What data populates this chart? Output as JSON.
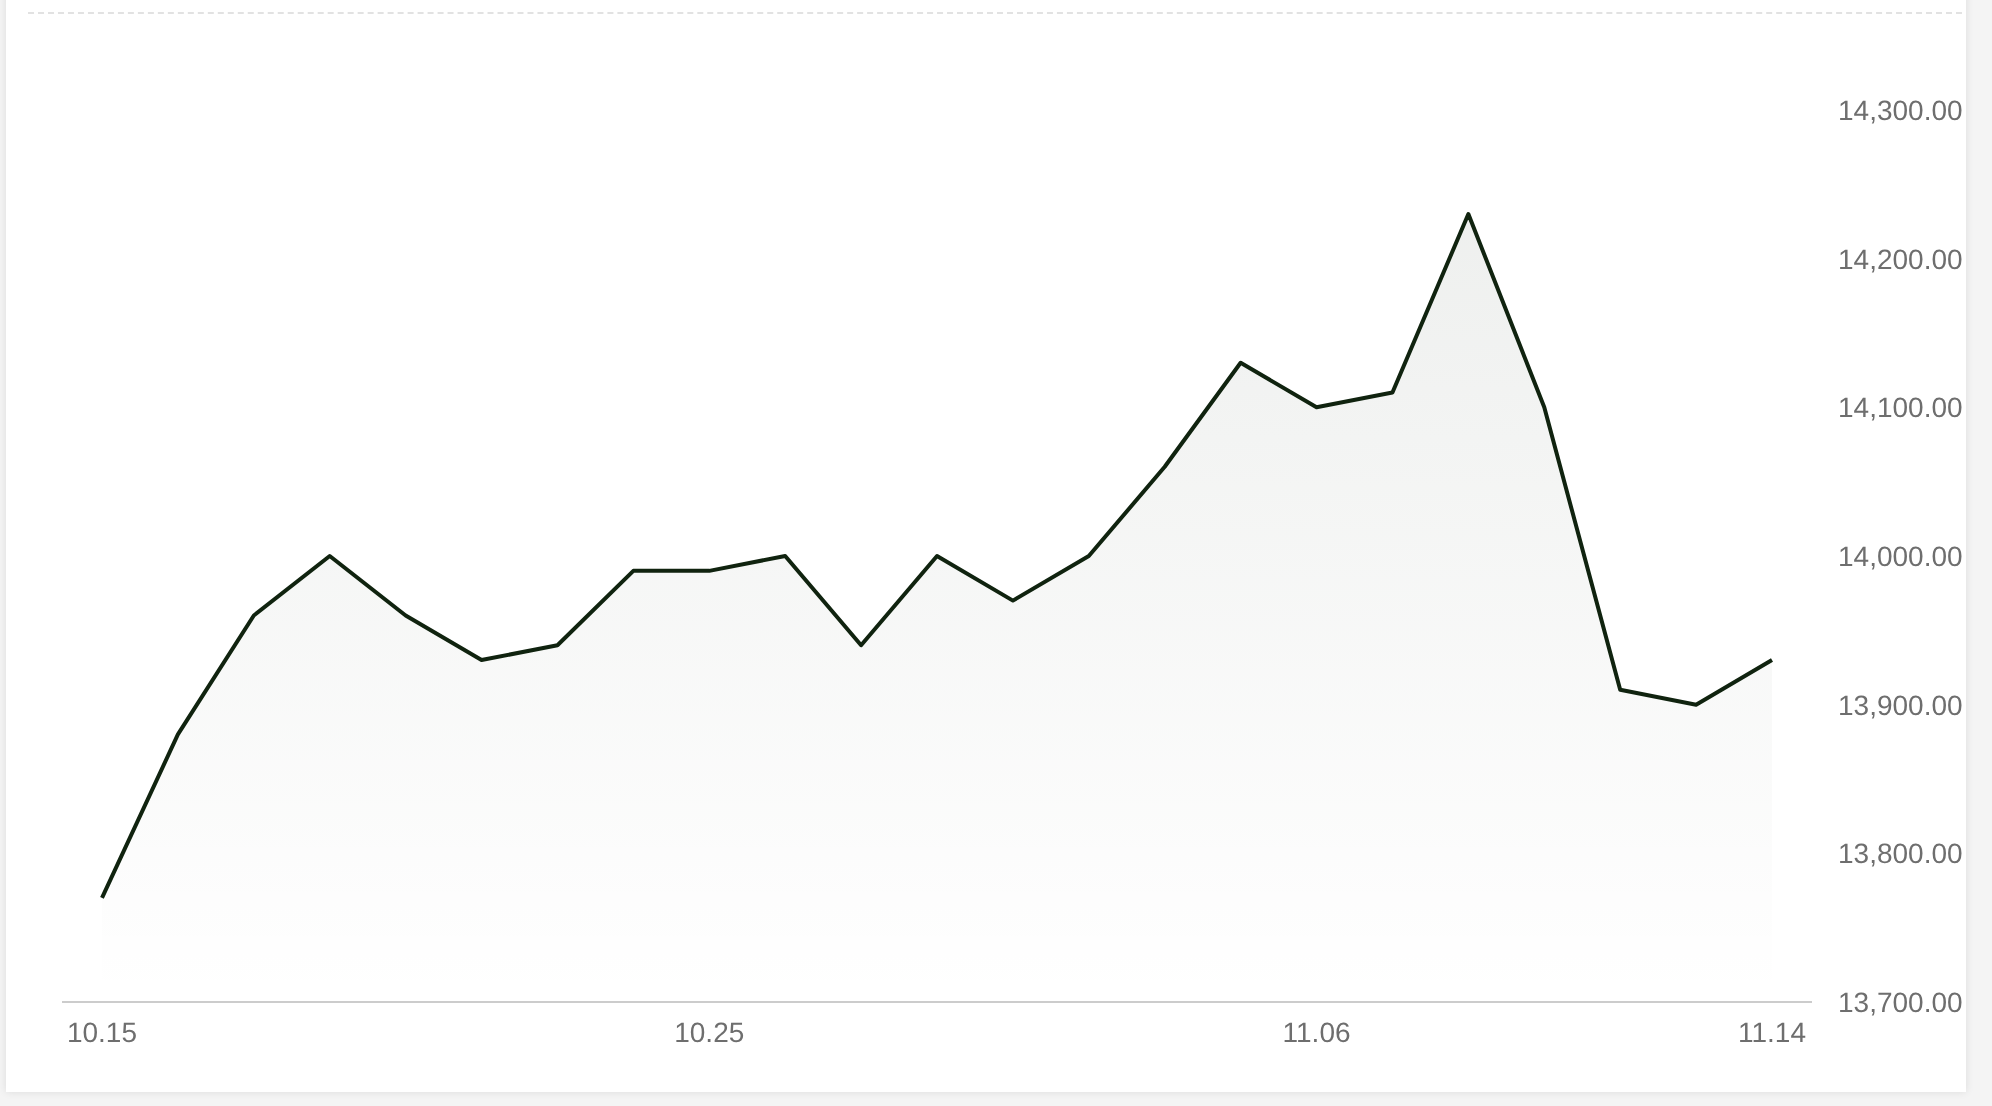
{
  "chart_data": {
    "type": "area",
    "categories": [
      "10.15",
      null,
      null,
      null,
      null,
      null,
      null,
      null,
      "10.25",
      null,
      null,
      null,
      null,
      null,
      null,
      null,
      "11.06",
      null,
      null,
      null,
      null,
      null,
      "11.14"
    ],
    "series": [
      {
        "color": "#10230f",
        "values": [
          13770,
          13880,
          13960,
          14000,
          13960,
          13930,
          13940,
          13990,
          13990,
          14000,
          13940,
          14000,
          13970,
          14000,
          14060,
          14130,
          14100,
          14110,
          14230,
          14100,
          13910,
          13900,
          13930
        ]
      }
    ],
    "ylim": [
      13700,
      14300
    ],
    "yticks": [
      {
        "value": 13700,
        "label": "13,700.00"
      },
      {
        "value": 13800,
        "label": "13,800.00"
      },
      {
        "value": 13900,
        "label": "13,900.00"
      },
      {
        "value": 14000,
        "label": "14,000.00"
      },
      {
        "value": 14100,
        "label": "14,100.00"
      },
      {
        "value": 14200,
        "label": "14,200.00"
      },
      {
        "value": 14300,
        "label": "14,300.00"
      }
    ]
  }
}
